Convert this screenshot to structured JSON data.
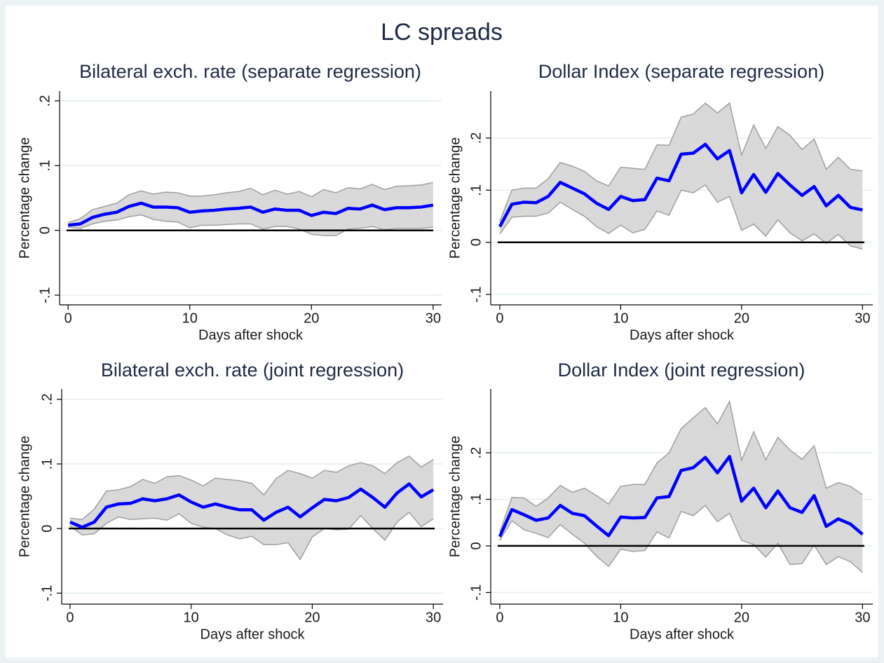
{
  "title": "LC spreads",
  "chart_data": [
    {
      "type": "line",
      "title": "Bilateral exch. rate (separate regression)",
      "xlabel": "Days after shock",
      "ylabel": "Percentage change",
      "x": [
        0,
        1,
        2,
        3,
        4,
        5,
        6,
        7,
        8,
        9,
        10,
        11,
        12,
        13,
        14,
        15,
        16,
        17,
        18,
        19,
        20,
        21,
        22,
        23,
        24,
        25,
        26,
        27,
        28,
        29,
        30
      ],
      "xlim": [
        -0.7,
        30.7
      ],
      "xticks": [
        0,
        10,
        20,
        30
      ],
      "ylim": [
        -0.115,
        0.215
      ],
      "yticks": [
        {
          "value": -0.1,
          "label": "-.1"
        },
        0,
        {
          "value": 0.1,
          "label": ".1"
        },
        {
          "value": 0.2,
          "label": ".2"
        }
      ],
      "grid": true,
      "reference_line": 0,
      "band": {
        "color": "#d9d9d9",
        "edge_color": "#a0a0a0",
        "upper": [
          0.012,
          0.018,
          0.032,
          0.037,
          0.042,
          0.055,
          0.061,
          0.056,
          0.059,
          0.058,
          0.053,
          0.053,
          0.055,
          0.058,
          0.06,
          0.065,
          0.055,
          0.062,
          0.056,
          0.06,
          0.052,
          0.063,
          0.058,
          0.066,
          0.064,
          0.071,
          0.063,
          0.068,
          0.069,
          0.07,
          0.074
        ],
        "lower": [
          0.005,
          0.003,
          0.01,
          0.014,
          0.016,
          0.021,
          0.024,
          0.017,
          0.014,
          0.013,
          0.004,
          0.008,
          0.008,
          0.009,
          0.01,
          0.01,
          0.002,
          0.006,
          0.006,
          0.002,
          -0.006,
          -0.008,
          -0.008,
          0.002,
          0.003,
          0.006,
          0.001,
          0.003,
          0.003,
          0.003,
          0.005
        ]
      },
      "series": [
        {
          "color": "#0000ff",
          "values": [
            0.008,
            0.01,
            0.02,
            0.025,
            0.028,
            0.037,
            0.042,
            0.036,
            0.036,
            0.035,
            0.028,
            0.03,
            0.031,
            0.033,
            0.034,
            0.036,
            0.028,
            0.033,
            0.031,
            0.031,
            0.023,
            0.028,
            0.026,
            0.034,
            0.033,
            0.039,
            0.032,
            0.035,
            0.035,
            0.036,
            0.039
          ]
        }
      ]
    },
    {
      "type": "line",
      "title": "Dollar Index (separate regression)",
      "xlabel": "Days after shock",
      "ylabel": "Percentage change",
      "x": [
        0,
        1,
        2,
        3,
        4,
        5,
        6,
        7,
        8,
        9,
        10,
        11,
        12,
        13,
        14,
        15,
        16,
        17,
        18,
        19,
        20,
        21,
        22,
        23,
        24,
        25,
        26,
        27,
        28,
        29,
        30
      ],
      "xlim": [
        -0.75,
        30.85
      ],
      "xticks": [
        0,
        10,
        20,
        30
      ],
      "ylim": [
        -0.12,
        0.29
      ],
      "yticks": [
        {
          "value": -0.1,
          "label": "-.1"
        },
        0,
        {
          "value": 0.1,
          "label": ".1"
        },
        {
          "value": 0.2,
          "label": ".2"
        }
      ],
      "grid": true,
      "reference_line": 0,
      "band": {
        "color": "#d9d9d9",
        "edge_color": "#a0a0a0",
        "upper": [
          0.04,
          0.1,
          0.104,
          0.104,
          0.122,
          0.153,
          0.146,
          0.136,
          0.118,
          0.108,
          0.144,
          0.142,
          0.14,
          0.187,
          0.186,
          0.24,
          0.246,
          0.267,
          0.248,
          0.267,
          0.167,
          0.225,
          0.18,
          0.222,
          0.205,
          0.178,
          0.198,
          0.14,
          0.163,
          0.14,
          0.137
        ],
        "lower": [
          0.016,
          0.048,
          0.05,
          0.05,
          0.056,
          0.077,
          0.063,
          0.05,
          0.03,
          0.017,
          0.033,
          0.018,
          0.025,
          0.06,
          0.052,
          0.1,
          0.095,
          0.11,
          0.077,
          0.088,
          0.023,
          0.035,
          0.012,
          0.043,
          0.018,
          0.003,
          0.016,
          -0.002,
          0.015,
          -0.007,
          -0.013
        ]
      },
      "series": [
        {
          "color": "#0000ff",
          "values": [
            0.03,
            0.073,
            0.077,
            0.076,
            0.088,
            0.115,
            0.104,
            0.093,
            0.075,
            0.063,
            0.088,
            0.08,
            0.082,
            0.123,
            0.118,
            0.169,
            0.171,
            0.188,
            0.16,
            0.176,
            0.095,
            0.13,
            0.096,
            0.132,
            0.11,
            0.09,
            0.107,
            0.07,
            0.09,
            0.067,
            0.062
          ]
        }
      ]
    },
    {
      "type": "line",
      "title": "Bilateral exch. rate (joint regression)",
      "xlabel": "Days after shock",
      "ylabel": "Percentage change",
      "x": [
        0,
        1,
        2,
        3,
        4,
        5,
        6,
        7,
        8,
        9,
        10,
        11,
        12,
        13,
        14,
        15,
        16,
        17,
        18,
        19,
        20,
        21,
        22,
        23,
        24,
        25,
        26,
        27,
        28,
        29,
        30
      ],
      "xlim": [
        -0.69,
        30.8
      ],
      "xticks": [
        0,
        10,
        20,
        30
      ],
      "ylim": [
        -0.117,
        0.216
      ],
      "yticks": [
        {
          "value": -0.1,
          "label": "-.1"
        },
        0,
        {
          "value": 0.1,
          "label": ".1"
        },
        {
          "value": 0.2,
          "label": ".2"
        }
      ],
      "grid": true,
      "reference_line": 0,
      "band": {
        "color": "#d9d9d9",
        "edge_color": "#a0a0a0",
        "upper": [
          0.016,
          0.014,
          0.03,
          0.058,
          0.06,
          0.065,
          0.076,
          0.07,
          0.08,
          0.082,
          0.075,
          0.066,
          0.078,
          0.076,
          0.074,
          0.07,
          0.052,
          0.077,
          0.09,
          0.085,
          0.078,
          0.09,
          0.087,
          0.097,
          0.102,
          0.097,
          0.085,
          0.102,
          0.112,
          0.095,
          0.107
        ],
        "lower": [
          0.004,
          -0.01,
          -0.008,
          0.008,
          0.018,
          0.014,
          0.015,
          0.016,
          0.013,
          0.023,
          0.008,
          0.002,
          0,
          -0.01,
          -0.016,
          -0.012,
          -0.025,
          -0.025,
          -0.022,
          -0.048,
          -0.013,
          0,
          -0.002,
          -0.001,
          0.02,
          0,
          -0.018,
          0.01,
          0.025,
          0.003,
          0.015
        ]
      },
      "series": [
        {
          "color": "#0000ff",
          "values": [
            0.01,
            0.002,
            0.01,
            0.033,
            0.038,
            0.039,
            0.046,
            0.043,
            0.046,
            0.052,
            0.041,
            0.033,
            0.038,
            0.033,
            0.029,
            0.029,
            0.013,
            0.025,
            0.033,
            0.018,
            0.032,
            0.045,
            0.043,
            0.048,
            0.061,
            0.048,
            0.033,
            0.055,
            0.069,
            0.049,
            0.06
          ]
        }
      ]
    },
    {
      "type": "line",
      "title": "Dollar Index (joint regression)",
      "xlabel": "Days after shock",
      "ylabel": "Percentage change",
      "x": [
        0,
        1,
        2,
        3,
        4,
        5,
        6,
        7,
        8,
        9,
        10,
        11,
        12,
        13,
        14,
        15,
        16,
        17,
        18,
        19,
        20,
        21,
        22,
        23,
        24,
        25,
        26,
        27,
        28,
        29,
        30
      ],
      "xlim": [
        -0.75,
        30.85
      ],
      "xticks": [
        0,
        10,
        20,
        30
      ],
      "ylim": [
        -0.125,
        0.337
      ],
      "yticks": [
        {
          "value": -0.1,
          "label": "-.1"
        },
        0,
        {
          "value": 0.1,
          "label": ".1"
        },
        {
          "value": 0.2,
          "label": ".2"
        }
      ],
      "grid": true,
      "reference_line": 0,
      "band": {
        "color": "#d9d9d9",
        "edge_color": "#a0a0a0",
        "upper": [
          0.03,
          0.104,
          0.103,
          0.085,
          0.103,
          0.13,
          0.115,
          0.124,
          0.108,
          0.09,
          0.128,
          0.132,
          0.132,
          0.178,
          0.2,
          0.252,
          0.275,
          0.297,
          0.262,
          0.31,
          0.184,
          0.245,
          0.185,
          0.233,
          0.206,
          0.186,
          0.215,
          0.124,
          0.136,
          0.128,
          0.11
        ],
        "lower": [
          0.012,
          0.054,
          0.035,
          0.027,
          0.018,
          0.046,
          0.025,
          0.006,
          -0.022,
          -0.044,
          -0.007,
          -0.012,
          -0.01,
          0.03,
          0.017,
          0.074,
          0.065,
          0.087,
          0.052,
          0.07,
          0.012,
          0.003,
          -0.024,
          0.006,
          -0.04,
          -0.038,
          0.002,
          -0.04,
          -0.023,
          -0.034,
          -0.057
        ]
      },
      "series": [
        {
          "color": "#0000ff",
          "values": [
            0.02,
            0.078,
            0.067,
            0.055,
            0.06,
            0.087,
            0.07,
            0.065,
            0.043,
            0.022,
            0.062,
            0.06,
            0.061,
            0.103,
            0.106,
            0.162,
            0.168,
            0.19,
            0.157,
            0.192,
            0.096,
            0.124,
            0.082,
            0.118,
            0.082,
            0.072,
            0.108,
            0.042,
            0.058,
            0.047,
            0.025
          ]
        }
      ]
    }
  ]
}
